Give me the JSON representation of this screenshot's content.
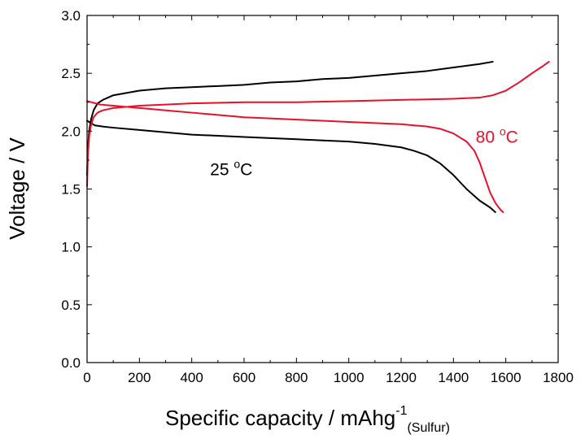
{
  "chart_data": {
    "type": "line",
    "title": "",
    "xlabel": {
      "main": "Specific capacity / mAhg",
      "sup": "-1",
      "sub": "(Sulfur)"
    },
    "ylabel": "Voltage / V",
    "xlim": [
      0,
      1800
    ],
    "ylim": [
      0.0,
      3.0
    ],
    "x_ticks": [
      "0",
      "200",
      "400",
      "600",
      "800",
      "1000",
      "1200",
      "1400",
      "1600",
      "1800"
    ],
    "y_ticks": [
      "0.0",
      "0.5",
      "1.0",
      "1.5",
      "2.0",
      "2.5",
      "3.0"
    ],
    "grid": false,
    "annotations": [
      {
        "id": "annot-25",
        "prefix": "25 ",
        "sup": "o",
        "suffix": "C",
        "color": "#000000",
        "x": 470,
        "y": 1.62
      },
      {
        "id": "annot-80",
        "prefix": "80 ",
        "sup": "o",
        "suffix": "C",
        "color": "#e8102a",
        "x": 1485,
        "y": 1.9
      }
    ],
    "series": [
      {
        "id": "black-discharge",
        "color": "#000000",
        "x": [
          0,
          30,
          60,
          100,
          200,
          300,
          400,
          500,
          600,
          700,
          800,
          900,
          1000,
          1100,
          1200,
          1250,
          1300,
          1350,
          1400,
          1450,
          1500,
          1540,
          1560
        ],
        "y": [
          2.09,
          2.05,
          2.04,
          2.03,
          2.01,
          1.99,
          1.97,
          1.96,
          1.95,
          1.94,
          1.93,
          1.92,
          1.91,
          1.89,
          1.86,
          1.83,
          1.79,
          1.72,
          1.62,
          1.5,
          1.4,
          1.34,
          1.3
        ]
      },
      {
        "id": "black-charge",
        "color": "#000000",
        "x": [
          0,
          3,
          8,
          15,
          25,
          40,
          60,
          80,
          100,
          150,
          200,
          300,
          400,
          500,
          600,
          700,
          800,
          900,
          1000,
          1100,
          1200,
          1300,
          1400,
          1500,
          1550
        ],
        "y": [
          1.62,
          1.85,
          2.0,
          2.1,
          2.18,
          2.24,
          2.27,
          2.29,
          2.31,
          2.33,
          2.35,
          2.37,
          2.38,
          2.39,
          2.4,
          2.42,
          2.43,
          2.45,
          2.46,
          2.48,
          2.5,
          2.52,
          2.55,
          2.58,
          2.6
        ]
      },
      {
        "id": "red-discharge",
        "color": "#e8102a",
        "x": [
          0,
          50,
          100,
          150,
          200,
          250,
          300,
          400,
          500,
          600,
          700,
          800,
          900,
          1000,
          1100,
          1200,
          1300,
          1350,
          1400,
          1450,
          1480,
          1500,
          1520,
          1540,
          1560,
          1580,
          1590
        ],
        "y": [
          2.26,
          2.23,
          2.22,
          2.21,
          2.2,
          2.19,
          2.18,
          2.16,
          2.14,
          2.12,
          2.11,
          2.1,
          2.09,
          2.08,
          2.07,
          2.06,
          2.04,
          2.02,
          1.98,
          1.91,
          1.83,
          1.73,
          1.6,
          1.47,
          1.38,
          1.32,
          1.3
        ]
      },
      {
        "id": "red-charge",
        "color": "#e8102a",
        "x": [
          0,
          3,
          8,
          15,
          25,
          40,
          60,
          80,
          100,
          150,
          200,
          300,
          400,
          600,
          800,
          1000,
          1200,
          1400,
          1500,
          1550,
          1600,
          1650,
          1700,
          1740,
          1765
        ],
        "y": [
          1.52,
          1.78,
          1.95,
          2.05,
          2.12,
          2.16,
          2.18,
          2.19,
          2.2,
          2.21,
          2.22,
          2.23,
          2.24,
          2.25,
          2.25,
          2.26,
          2.27,
          2.28,
          2.29,
          2.31,
          2.35,
          2.42,
          2.5,
          2.56,
          2.6
        ]
      }
    ]
  }
}
